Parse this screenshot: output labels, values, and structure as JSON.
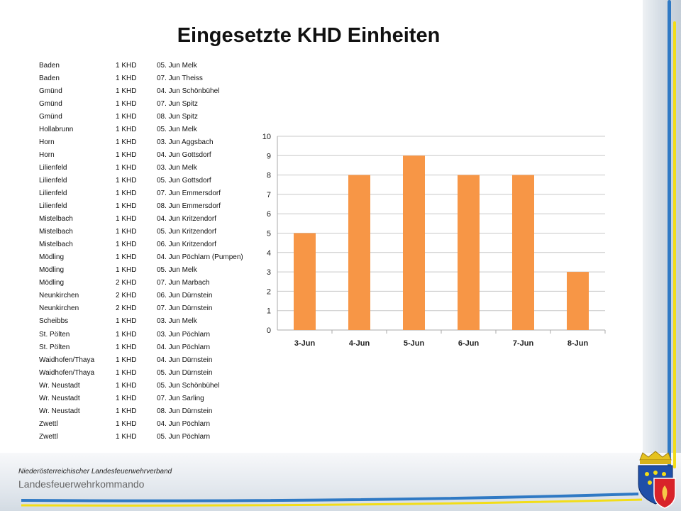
{
  "title": "Eingesetzte KHD Einheiten",
  "table": {
    "rows": [
      [
        "Baden",
        "1 KHD",
        "05. Jun Melk"
      ],
      [
        "Baden",
        "1 KHD",
        "07. Jun Theiss"
      ],
      [
        "Gmünd",
        "1 KHD",
        "04. Jun Schönbühel"
      ],
      [
        "Gmünd",
        "1 KHD",
        "07. Jun Spitz"
      ],
      [
        "Gmünd",
        "1 KHD",
        "08. Jun Spitz"
      ],
      [
        "Hollabrunn",
        "1 KHD",
        "05. Jun Melk"
      ],
      [
        "Horn",
        "1 KHD",
        "03. Jun Aggsbach"
      ],
      [
        "Horn",
        "1 KHD",
        "04. Jun Gottsdorf"
      ],
      [
        "Lilienfeld",
        "1 KHD",
        "03. Jun Melk"
      ],
      [
        "Lilienfeld",
        "1 KHD",
        "05. Jun Gottsdorf"
      ],
      [
        "Lilienfeld",
        "1 KHD",
        "07. Jun Emmersdorf"
      ],
      [
        "Lilienfeld",
        "1 KHD",
        "08. Jun Emmersdorf"
      ],
      [
        "Mistelbach",
        "1 KHD",
        "04. Jun Kritzendorf"
      ],
      [
        "Mistelbach",
        "1 KHD",
        "05. Jun Kritzendorf"
      ],
      [
        "Mistelbach",
        "1 KHD",
        "06. Jun Kritzendorf"
      ],
      [
        "Mödling",
        "1 KHD",
        "04. Jun Pöchlarn (Pumpen)"
      ],
      [
        "Mödling",
        "1 KHD",
        "05. Jun Melk"
      ],
      [
        "Mödling",
        "2 KHD",
        "07. Jun Marbach"
      ],
      [
        "Neunkirchen",
        "2 KHD",
        "06. Jun Dürnstein"
      ],
      [
        "Neunkirchen",
        "2 KHD",
        "07. Jun Dürnstein"
      ],
      [
        "Scheibbs",
        "1 KHD",
        "03. Jun Melk"
      ],
      [
        "St. Pölten",
        "1 KHD",
        "03. Jun Pöchlarn"
      ],
      [
        "St. Pölten",
        "1 KHD",
        "04. Jun Pöchlarn"
      ],
      [
        "Waidhofen/Thaya",
        "1 KHD",
        "04. Jun Dürnstein"
      ],
      [
        "Waidhofen/Thaya",
        "1 KHD",
        "05. Jun Dürnstein"
      ],
      [
        "Wr. Neustadt",
        "1 KHD",
        "05. Jun Schönbühel"
      ],
      [
        "Wr. Neustadt",
        "1 KHD",
        "07. Jun Sarling"
      ],
      [
        "Wr. Neustadt",
        "1 KHD",
        "08. Jun Dürnstein"
      ],
      [
        "Zwettl",
        "1 KHD",
        "04. Jun Pöchlarn"
      ],
      [
        "Zwettl",
        "1 KHD",
        "05. Jun Pöchlarn"
      ]
    ]
  },
  "chart_data": {
    "type": "bar",
    "categories": [
      "3-Jun",
      "4-Jun",
      "5-Jun",
      "6-Jun",
      "7-Jun",
      "8-Jun"
    ],
    "values": [
      5,
      8,
      9,
      8,
      8,
      3
    ],
    "title": "",
    "xlabel": "",
    "ylabel": "",
    "ylim": [
      0,
      10
    ],
    "yticks": [
      0,
      1,
      2,
      3,
      4,
      5,
      6,
      7,
      8,
      9,
      10
    ],
    "grid": true,
    "legend": "none",
    "bar_color": "#f79646"
  },
  "footer": {
    "org": "Niederösterreichischer Landesfeuerwehrverband",
    "command": "Landesfeuerwehrkommando"
  },
  "colors": {
    "accent_blue": "#2f79c4",
    "accent_yellow": "#f2dd18"
  }
}
